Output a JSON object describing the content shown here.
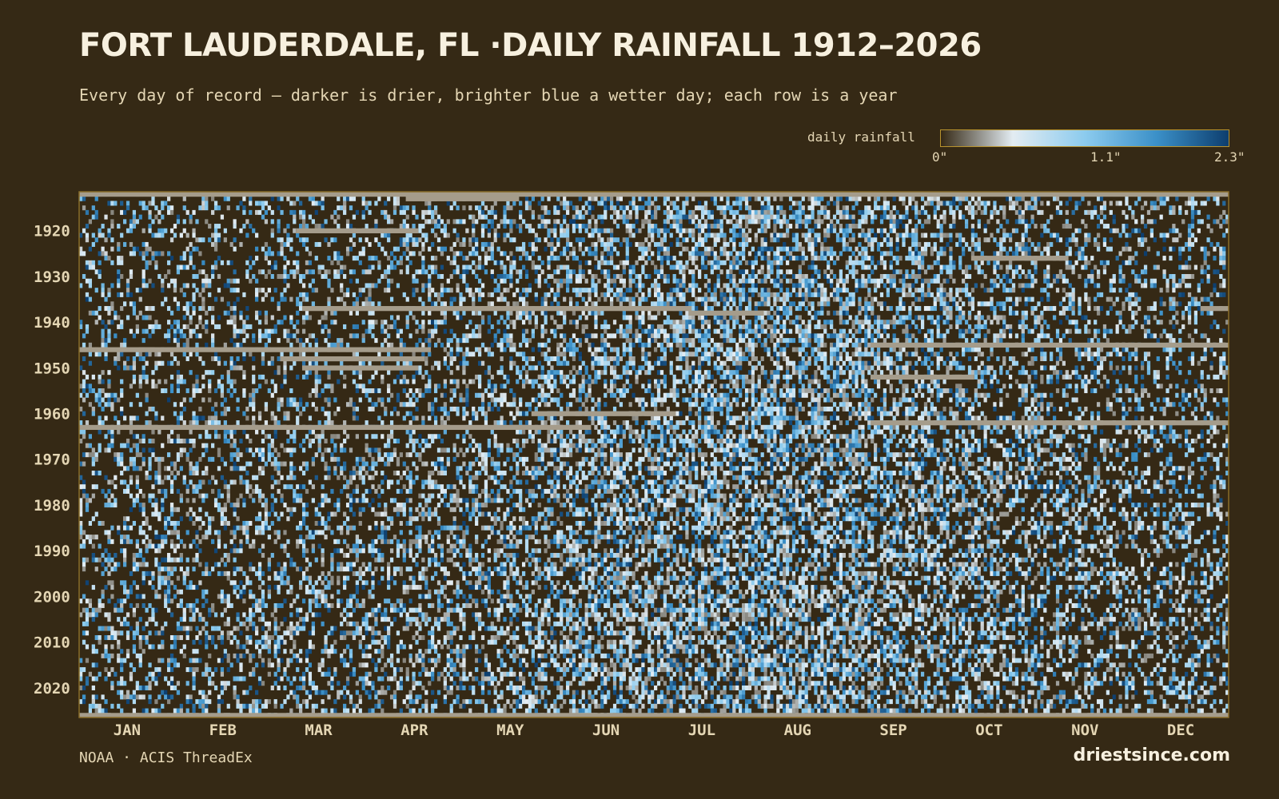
{
  "header": {
    "title": "FORT LAUDERDALE, FL ·DAILY RAINFALL 1912–2026",
    "subtitle": "Every day of record — darker is drier, brighter blue a wetter day; each row is a year"
  },
  "legend": {
    "label": "daily rainfall",
    "ticks": [
      "0\"",
      "1.1\"",
      "2.3\""
    ]
  },
  "footer": {
    "source": "NOAA · ACIS ThreadEx",
    "brand": "driestsince.com"
  },
  "colors": {
    "background": "#352915",
    "missing": "#a59c8b",
    "ramp": [
      "#352915",
      "#e3ecf2",
      "#8ccbee",
      "#3b90c8",
      "#0d3e6e"
    ]
  },
  "chart_data": {
    "type": "heatmap",
    "title": "FORT LAUDERDALE, FL ·DAILY RAINFALL 1912–2026",
    "x_label": "",
    "y_label": "",
    "x_categories": [
      "JAN",
      "FEB",
      "MAR",
      "APR",
      "MAY",
      "JUN",
      "JUL",
      "AUG",
      "SEP",
      "OCT",
      "NOV",
      "DEC"
    ],
    "y_range": [
      1912,
      2026
    ],
    "y_ticks": [
      1920,
      1930,
      1940,
      1950,
      1960,
      1970,
      1980,
      1990,
      2000,
      2010,
      2020
    ],
    "value_range": [
      0,
      2.3
    ],
    "value_unit": "inches",
    "grid": false,
    "legend_position": "top-right",
    "missing_spans": [
      {
        "year": 1912,
        "from_day": 1,
        "to_day": 366
      },
      {
        "year": 1913,
        "from_day": 105,
        "to_day": 140
      },
      {
        "year": 1920,
        "from_day": 70,
        "to_day": 108
      },
      {
        "year": 1926,
        "from_day": 285,
        "to_day": 315
      },
      {
        "year": 1937,
        "from_day": 72,
        "to_day": 195
      },
      {
        "year": 1937,
        "from_day": 358,
        "to_day": 366
      },
      {
        "year": 1938,
        "from_day": 195,
        "to_day": 218
      },
      {
        "year": 1945,
        "from_day": 253,
        "to_day": 366
      },
      {
        "year": 1946,
        "from_day": 1,
        "to_day": 112
      },
      {
        "year": 1948,
        "from_day": 65,
        "to_day": 110
      },
      {
        "year": 1950,
        "from_day": 72,
        "to_day": 108
      },
      {
        "year": 1952,
        "from_day": 253,
        "to_day": 285
      },
      {
        "year": 1960,
        "from_day": 145,
        "to_day": 190
      },
      {
        "year": 1962,
        "from_day": 253,
        "to_day": 366
      },
      {
        "year": 1963,
        "from_day": 1,
        "to_day": 163
      },
      {
        "year": 2026,
        "from_day": 1,
        "to_day": 366
      }
    ]
  }
}
